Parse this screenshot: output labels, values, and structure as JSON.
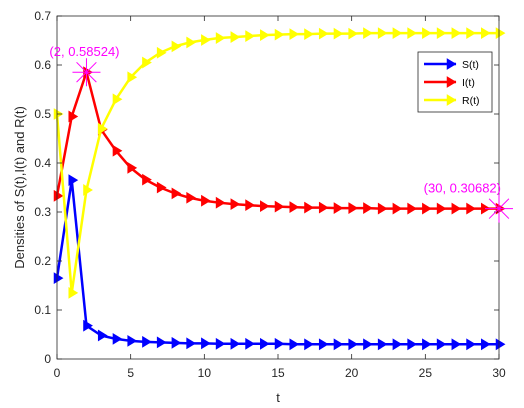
{
  "chart_data": {
    "type": "line",
    "xlabel": "t",
    "ylabel": "Densities of S(t),I(t) and R(t)",
    "xlim": [
      0,
      30
    ],
    "ylim": [
      0,
      0.7
    ],
    "xticks": [
      0,
      5,
      10,
      15,
      20,
      25,
      30
    ],
    "yticks": [
      0,
      0.1,
      0.2,
      0.3,
      0.4,
      0.5,
      0.6,
      0.7
    ],
    "x_tick_labels": [
      "0",
      "5",
      "10",
      "15",
      "20",
      "25",
      "30"
    ],
    "y_tick_labels": [
      "0",
      "0.1",
      "0.2",
      "0.3",
      "0.4",
      "0.5",
      "0.6",
      "0.7"
    ],
    "grid": false,
    "legend_position": "top-right",
    "x": [
      0,
      1,
      2,
      3,
      4,
      5,
      6,
      7,
      8,
      9,
      10,
      11,
      12,
      13,
      14,
      15,
      16,
      17,
      18,
      19,
      20,
      21,
      22,
      23,
      24,
      25,
      26,
      27,
      28,
      29,
      30
    ],
    "series": [
      {
        "name": "S(t)",
        "color": "#0000ff",
        "values": [
          0.165,
          0.365,
          0.068,
          0.048,
          0.041,
          0.037,
          0.035,
          0.034,
          0.033,
          0.032,
          0.032,
          0.031,
          0.031,
          0.031,
          0.031,
          0.031,
          0.03,
          0.03,
          0.03,
          0.03,
          0.03,
          0.03,
          0.03,
          0.03,
          0.03,
          0.03,
          0.03,
          0.03,
          0.03,
          0.03,
          0.03
        ]
      },
      {
        "name": "I(t)",
        "color": "#ff0000",
        "values": [
          0.333,
          0.495,
          0.58524,
          0.468,
          0.425,
          0.39,
          0.366,
          0.35,
          0.338,
          0.329,
          0.323,
          0.319,
          0.316,
          0.314,
          0.312,
          0.311,
          0.31,
          0.309,
          0.309,
          0.308,
          0.308,
          0.308,
          0.307,
          0.307,
          0.307,
          0.307,
          0.307,
          0.307,
          0.307,
          0.307,
          0.30682
        ]
      },
      {
        "name": "R(t)",
        "color": "#ffff00",
        "values": [
          0.5,
          0.135,
          0.345,
          0.47,
          0.53,
          0.575,
          0.605,
          0.625,
          0.638,
          0.646,
          0.651,
          0.655,
          0.657,
          0.659,
          0.661,
          0.662,
          0.663,
          0.663,
          0.664,
          0.664,
          0.664,
          0.665,
          0.665,
          0.665,
          0.665,
          0.665,
          0.665,
          0.665,
          0.665,
          0.665,
          0.665
        ]
      }
    ],
    "annotations": [
      {
        "x": 2,
        "y": 0.58524,
        "text": "(2, 0.58524)",
        "color": "#ff00ff"
      },
      {
        "x": 30,
        "y": 0.30682,
        "text": "(30, 0.30682)",
        "color": "#ff00ff"
      }
    ]
  }
}
